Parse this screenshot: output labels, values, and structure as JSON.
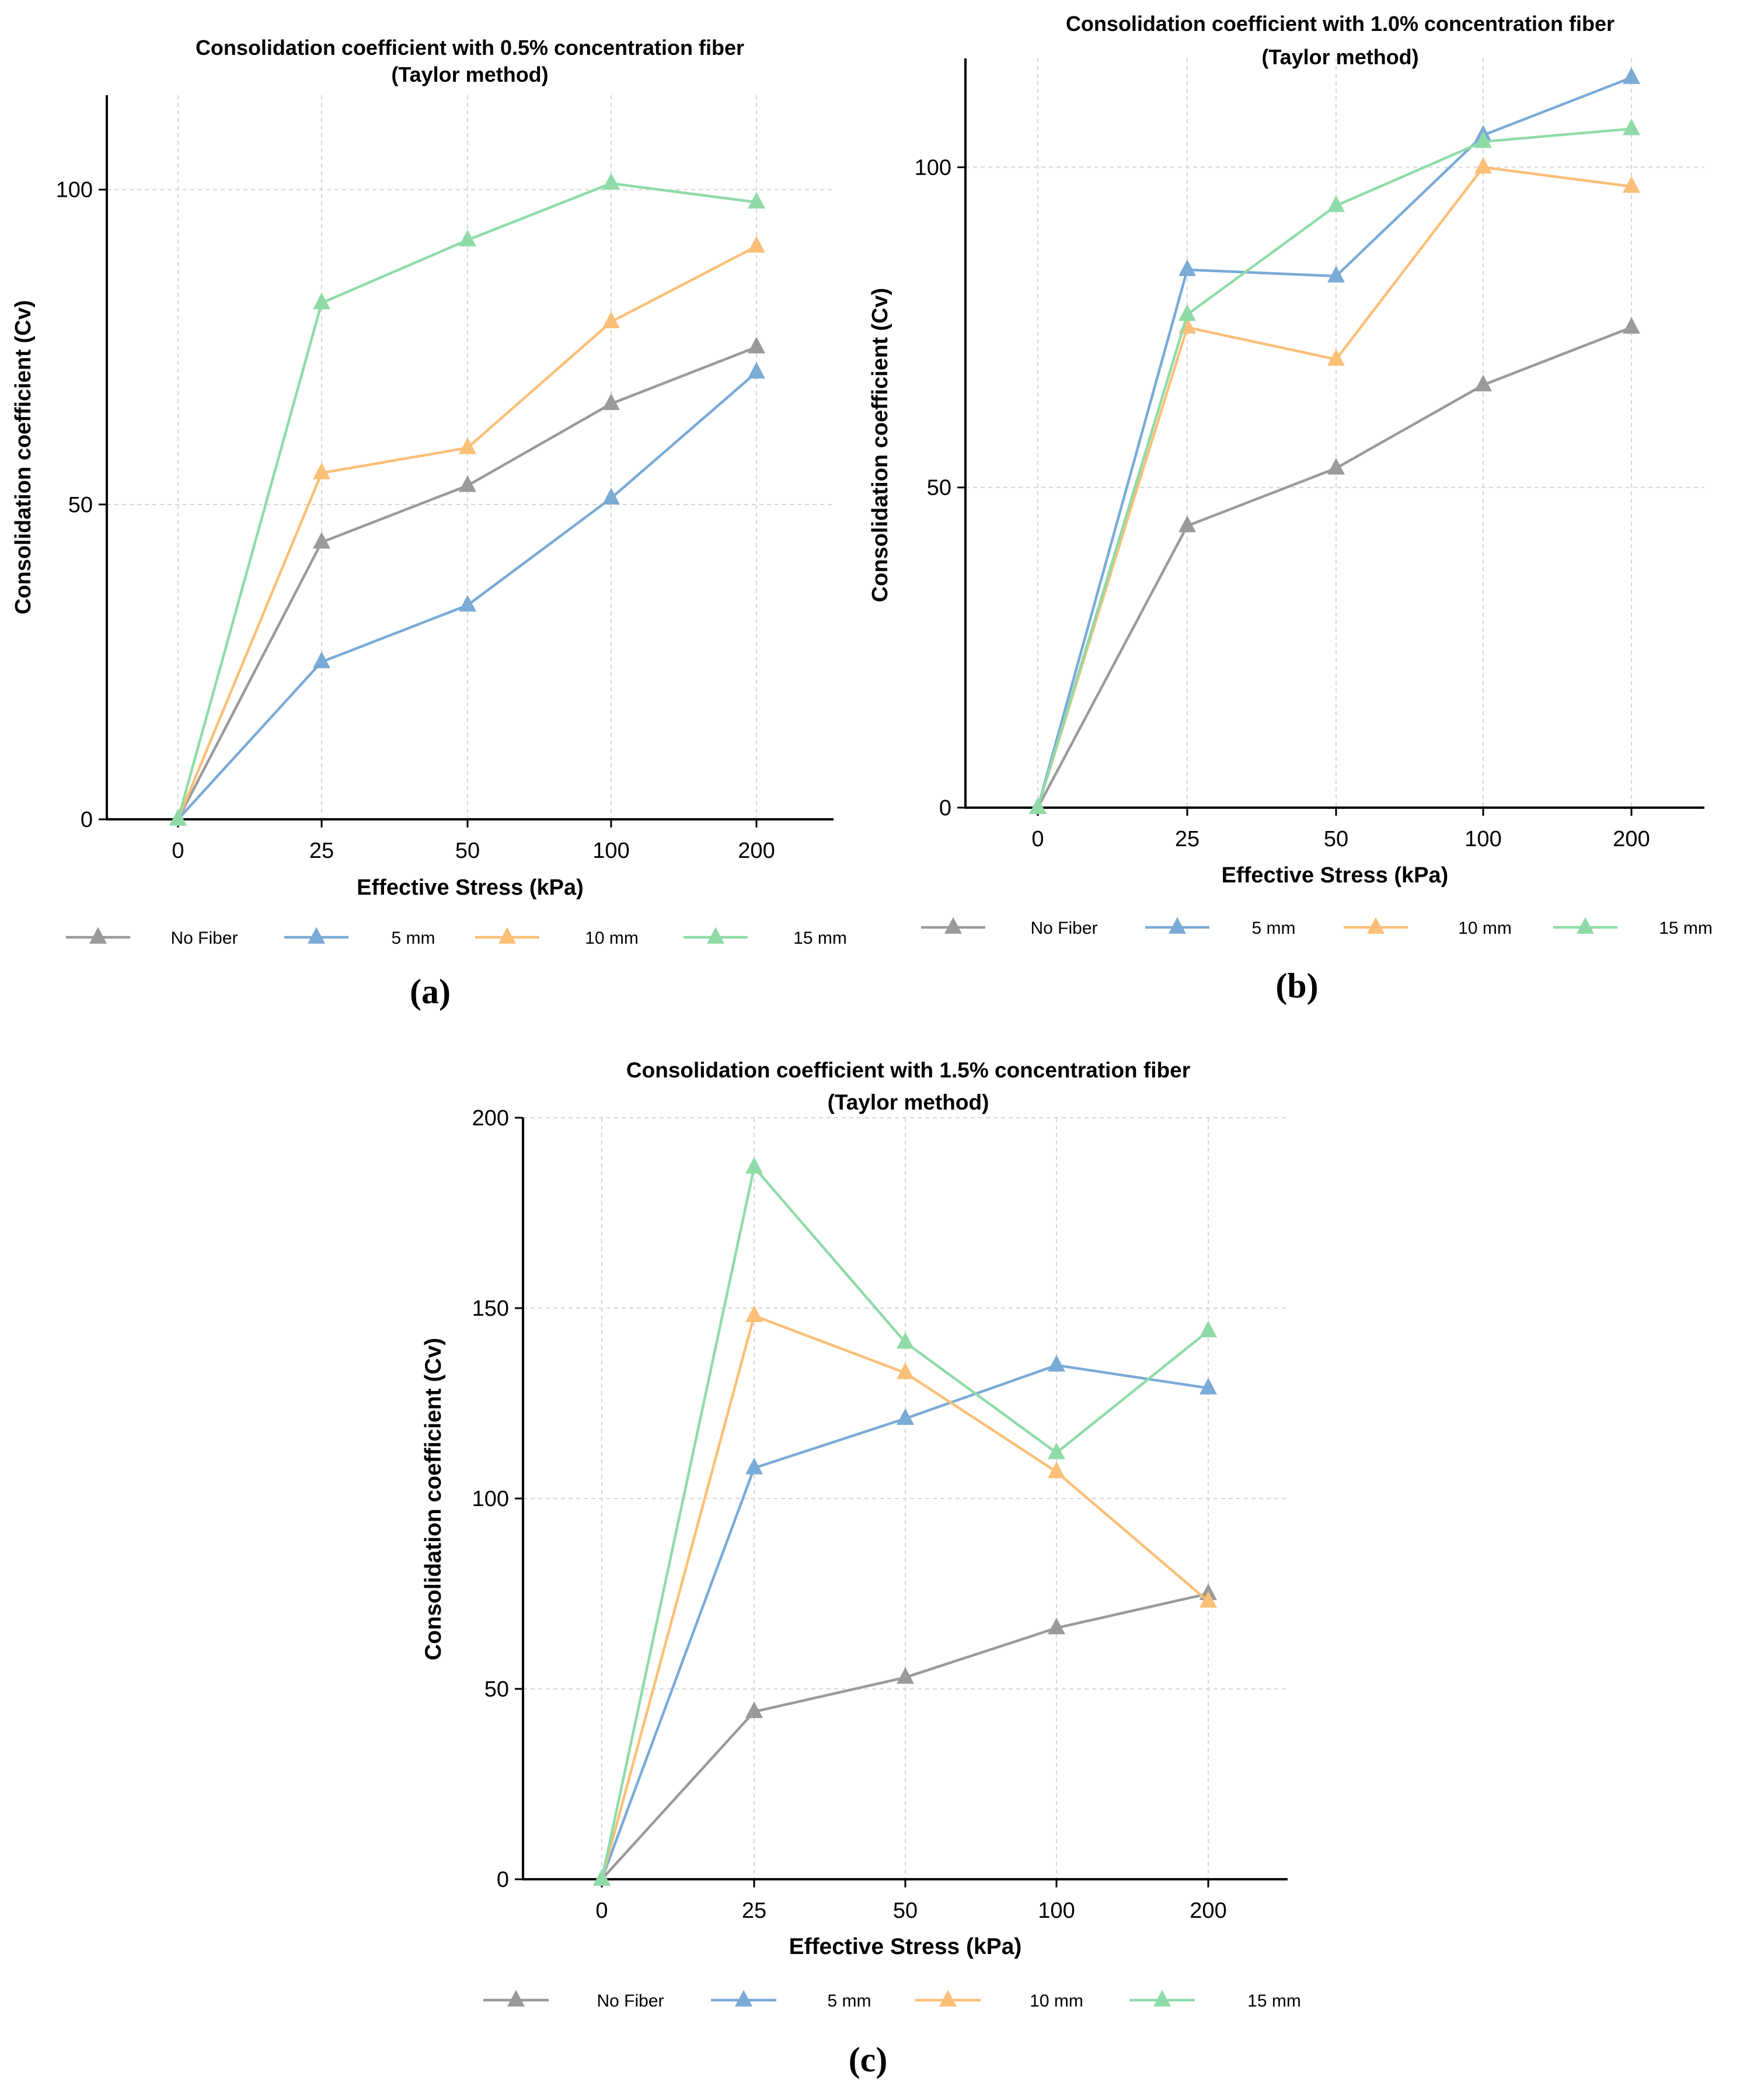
{
  "chart_data": [
    {
      "panel_id": "a",
      "type": "line",
      "title": "Consolidation coefficient with 0.5% concentration fiber",
      "subtitle": "(Taylor method)",
      "xlabel": "Effective Stress (kPa)",
      "ylabel": "Consolidation coefficient (Cv)",
      "categories": [
        "0",
        "25",
        "50",
        "100",
        "200"
      ],
      "ylim": [
        0,
        115
      ],
      "yticks": [
        0,
        50,
        100
      ],
      "grid": true,
      "legend_position": "bottom",
      "caption": "(a)",
      "series": [
        {
          "name": "No Fiber",
          "color": "#9a9a9a",
          "values": [
            0,
            44,
            53,
            66,
            75
          ]
        },
        {
          "name": "5 mm",
          "color": "#7aaad6",
          "values": [
            0,
            25,
            34,
            51,
            71
          ]
        },
        {
          "name": "10 mm",
          "color": "#fbbf77",
          "values": [
            0,
            55,
            59,
            79,
            91
          ]
        },
        {
          "name": "15 mm",
          "color": "#8fdba8",
          "values": [
            0,
            82,
            92,
            101,
            98
          ]
        }
      ]
    },
    {
      "panel_id": "b",
      "type": "line",
      "title": "Consolidation coefficient with 1.0% concentration fiber",
      "subtitle": "(Taylor method)",
      "xlabel": "Effective Stress (kPa)",
      "ylabel": "Consolidation coefficient (Cv)",
      "categories": [
        "0",
        "25",
        "50",
        "100",
        "200"
      ],
      "ylim": [
        0,
        117
      ],
      "yticks": [
        0,
        50,
        100
      ],
      "grid": true,
      "legend_position": "bottom",
      "caption": "(b)",
      "series": [
        {
          "name": "No Fiber",
          "color": "#9a9a9a",
          "values": [
            0,
            44,
            53,
            66,
            75
          ]
        },
        {
          "name": "5 mm",
          "color": "#7aaad6",
          "values": [
            0,
            84,
            83,
            105,
            114
          ]
        },
        {
          "name": "10 mm",
          "color": "#fbbf77",
          "values": [
            0,
            75,
            70,
            100,
            97
          ]
        },
        {
          "name": "15 mm",
          "color": "#8fdba8",
          "values": [
            0,
            77,
            94,
            104,
            106
          ]
        }
      ]
    },
    {
      "panel_id": "c",
      "type": "line",
      "title": "Consolidation coefficient with 1.5% concentration fiber",
      "subtitle": "(Taylor method)",
      "xlabel": "Effective Stress (kPa)",
      "ylabel": "Consolidation coefficient (Cv)",
      "categories": [
        "0",
        "25",
        "50",
        "100",
        "200"
      ],
      "ylim": [
        0,
        200
      ],
      "yticks": [
        0,
        50,
        100,
        150,
        200
      ],
      "grid": true,
      "legend_position": "bottom",
      "caption": "(c)",
      "series": [
        {
          "name": "No Fiber",
          "color": "#9a9a9a",
          "values": [
            0,
            44,
            53,
            66,
            75
          ]
        },
        {
          "name": "5 mm",
          "color": "#7aaad6",
          "values": [
            0,
            108,
            121,
            135,
            129
          ]
        },
        {
          "name": "10 mm",
          "color": "#fbbf77",
          "values": [
            0,
            148,
            133,
            107,
            73
          ]
        },
        {
          "name": "15 mm",
          "color": "#8fdba8",
          "values": [
            0,
            187,
            141,
            112,
            144
          ]
        }
      ]
    }
  ]
}
